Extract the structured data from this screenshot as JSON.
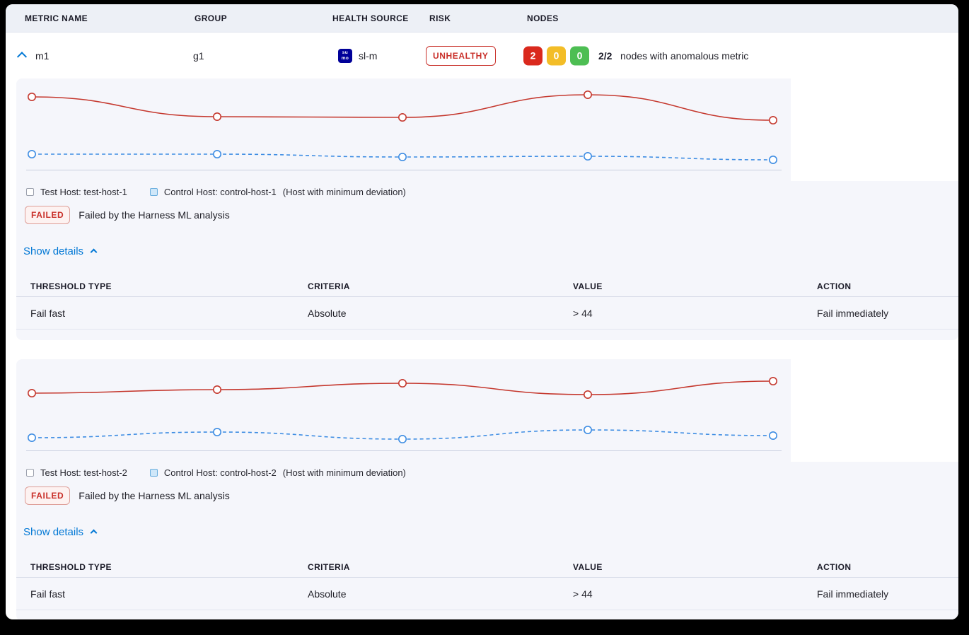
{
  "header": {
    "columns": [
      "METRIC NAME",
      "GROUP",
      "HEALTH SOURCE",
      "RISK",
      "NODES"
    ]
  },
  "row": {
    "metric_name": "m1",
    "group": "g1",
    "health_source_label": "sl-m",
    "health_source_icon": {
      "top": "su",
      "bottom": "mo"
    },
    "risk_label": "UNHEALTHY",
    "node_counts": {
      "unhealthy": "2",
      "warning": "0",
      "healthy": "0"
    },
    "nodes_ratio": "2/2",
    "nodes_caption": "nodes with anomalous metric"
  },
  "sections": [
    {
      "legend": {
        "test": "Test Host: test-host-1",
        "control": "Control Host: control-host-1",
        "note": "(Host with minimum deviation)"
      },
      "verdict": {
        "badge": "FAILED",
        "text": "Failed by the Harness ML analysis"
      },
      "show_details": "Show details",
      "table": {
        "headers": [
          "THRESHOLD TYPE",
          "CRITERIA",
          "VALUE",
          "ACTION"
        ],
        "rows": [
          [
            "Fail fast",
            "Absolute",
            "> 44",
            "Fail immediately"
          ]
        ]
      }
    },
    {
      "legend": {
        "test": "Test Host: test-host-2",
        "control": "Control Host: control-host-2",
        "note": "(Host with minimum deviation)"
      },
      "verdict": {
        "badge": "FAILED",
        "text": "Failed by the Harness ML analysis"
      },
      "show_details": "Show details",
      "table": {
        "headers": [
          "THRESHOLD TYPE",
          "CRITERIA",
          "VALUE",
          "ACTION"
        ],
        "rows": [
          [
            "Fail fast",
            "Absolute",
            "> 44",
            "Fail immediately"
          ]
        ]
      }
    }
  ],
  "chart_data": [
    {
      "type": "line",
      "title": "",
      "xlabel": "",
      "ylabel": "",
      "x": [
        0,
        1,
        2,
        3,
        4
      ],
      "x_tick_labels": [],
      "grid": false,
      "legend_position": "below-chart",
      "value_scale": "relative height in chart px (no axis labels shown)",
      "ylim": [
        0,
        145
      ],
      "series": [
        {
          "name": "Test Host: test-host-1",
          "color": "#c5382e",
          "dash": false,
          "marker": "open-circle",
          "values": [
            119,
            91,
            90,
            122,
            86
          ]
        },
        {
          "name": "Control Host: control-host-1",
          "color": "#3e8de3",
          "dash": true,
          "marker": "open-circle",
          "values": [
            38,
            38,
            34,
            35,
            30
          ]
        }
      ]
    },
    {
      "type": "line",
      "title": "",
      "xlabel": "",
      "ylabel": "",
      "x": [
        0,
        1,
        2,
        3,
        4
      ],
      "x_tick_labels": [],
      "grid": false,
      "legend_position": "below-chart",
      "value_scale": "relative height in chart px (no axis labels shown)",
      "ylim": [
        0,
        145
      ],
      "series": [
        {
          "name": "Test Host: test-host-2",
          "color": "#c5382e",
          "dash": false,
          "marker": "open-circle",
          "values": [
            97,
            102,
            111,
            95,
            114
          ]
        },
        {
          "name": "Control Host: control-host-2",
          "color": "#3e8de3",
          "dash": true,
          "marker": "open-circle",
          "values": [
            34,
            42,
            32,
            45,
            37
          ]
        }
      ]
    }
  ],
  "colors": {
    "node_red": "#da291d",
    "node_yellow": "#f3bd27",
    "node_green": "#4dbe53",
    "risk_red": "#c9302a",
    "failed_red": "#c9302a",
    "link_blue": "#0278d5",
    "line_red": "#c5382e",
    "line_blue": "#3e8de3",
    "sumo_navy": "#000099",
    "header_bg": "#edf0f6",
    "panel_bg": "#f5f6fb"
  }
}
